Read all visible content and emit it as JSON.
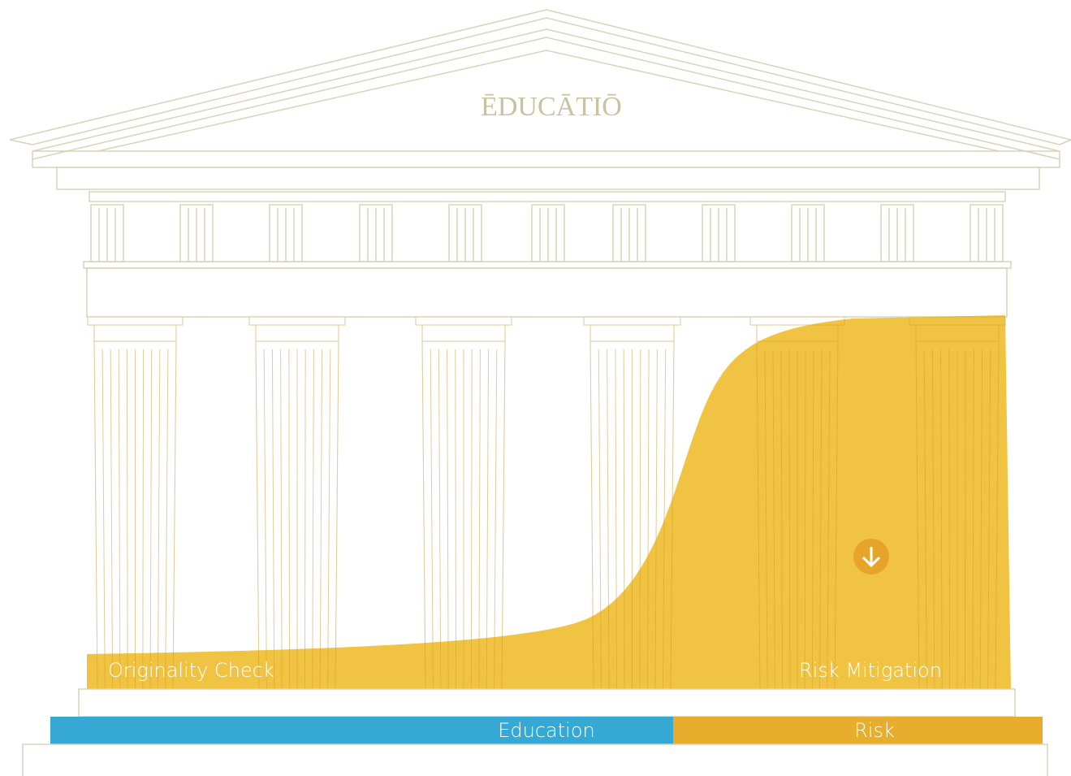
{
  "pediment": {
    "title": "ĒDUCĀTIŌ"
  },
  "overlay": {
    "left_label": "Originality Check",
    "right_label": "Risk Mitigation"
  },
  "base_bar": {
    "segments": [
      {
        "label": "Education"
      },
      {
        "label": "Risk"
      }
    ]
  }
}
